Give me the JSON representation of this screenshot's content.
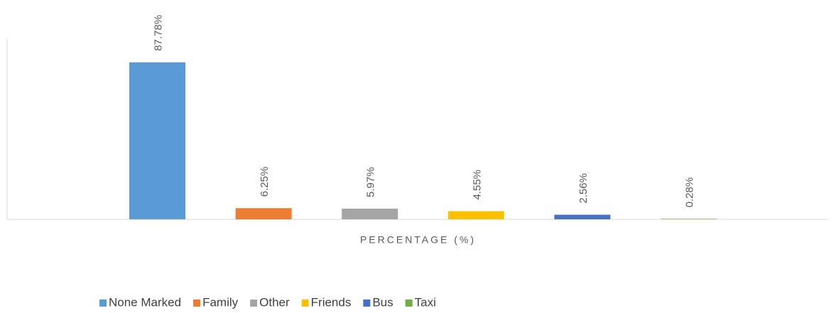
{
  "chart_data": {
    "type": "bar",
    "categories": [
      "PERCENTAGE (%)"
    ],
    "series": [
      {
        "name": "None Marked",
        "color": "#5b9bd5",
        "values": [
          87.78
        ],
        "value_labels": [
          "87.78%"
        ]
      },
      {
        "name": "Family",
        "color": "#ed7d31",
        "values": [
          6.25
        ],
        "value_labels": [
          "6.25%"
        ]
      },
      {
        "name": "Other",
        "color": "#a5a5a5",
        "values": [
          5.97
        ],
        "value_labels": [
          "5.97%"
        ]
      },
      {
        "name": "Friends",
        "color": "#ffc000",
        "values": [
          4.55
        ],
        "value_labels": [
          "4.55%"
        ]
      },
      {
        "name": "Bus",
        "color": "#4472c4",
        "values": [
          2.56
        ],
        "value_labels": [
          "2.56%"
        ]
      },
      {
        "name": "Taxi",
        "color": "#70ad47",
        "values": [
          0.28
        ],
        "value_labels": [
          "0.28%"
        ]
      }
    ],
    "ylim": [
      0,
      100
    ],
    "legend": "bottom"
  }
}
